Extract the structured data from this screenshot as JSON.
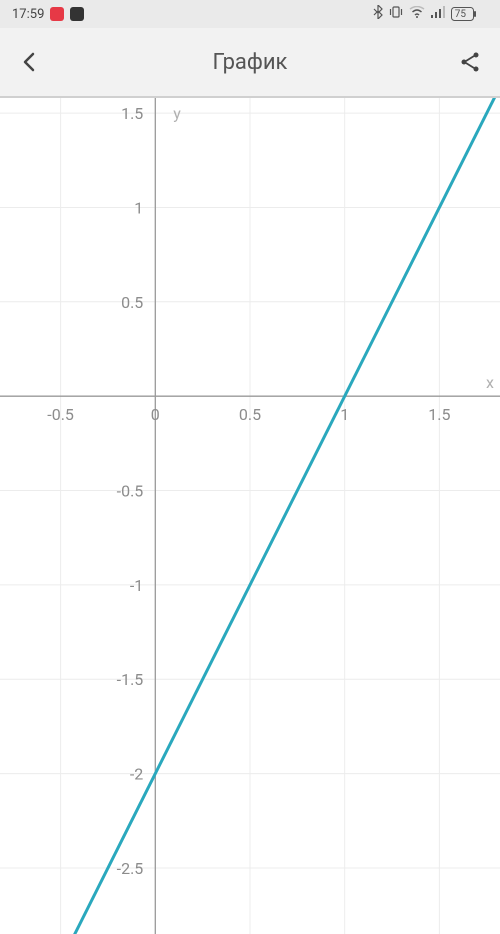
{
  "status_bar": {
    "time": "17:59",
    "battery": "75"
  },
  "app_bar": {
    "title": "График"
  },
  "chart": {
    "type": "line",
    "background_color": "#ffffff",
    "grid_color": "#ececec",
    "axis_color": "#9a9a9a",
    "tick_label_color": "#8c8c8c",
    "axis_label_color": "#b0b0b0",
    "line_color": "#2aa8bd",
    "line_width": 3,
    "x_axis": {
      "label": "x",
      "min": -0.82,
      "max": 1.82,
      "tick_step": 0.5,
      "ticks": [
        -0.5,
        0,
        0.5,
        1,
        1.5
      ]
    },
    "y_axis": {
      "label": "y",
      "min": -2.85,
      "max": 1.58,
      "tick_step": 0.5,
      "ticks": [
        1.5,
        1,
        0.5,
        -0.5,
        -1,
        -1.5,
        -2,
        -2.5
      ]
    },
    "series": {
      "slope": 2,
      "intercept": -2,
      "x1": -0.5,
      "y1": -3.0,
      "x2": 1.82,
      "y2": 1.64
    },
    "tick_fontsize": 16,
    "axis_label_fontsize": 16
  }
}
